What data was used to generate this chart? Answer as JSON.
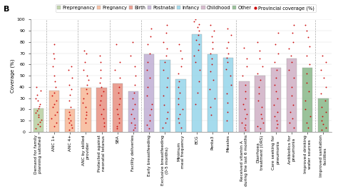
{
  "title": "B",
  "ylabel": "Coverage (%)",
  "ylim": [
    0,
    100
  ],
  "yticks": [
    0,
    10,
    20,
    30,
    40,
    50,
    60,
    70,
    80,
    90,
    100
  ],
  "bars": [
    {
      "label": "Demand for family\nplanning satisfied",
      "value": 21,
      "color": "#b8cfa0",
      "category": "Prepregnancy"
    },
    {
      "label": "ANC 1+",
      "value": 37,
      "color": "#f7b897",
      "category": "Pregnancy"
    },
    {
      "label": "ANC 4+",
      "value": 20,
      "color": "#f7b897",
      "category": "Pregnancy"
    },
    {
      "label": "ANC by skilled\nprovider",
      "value": 39,
      "color": "#f7b897",
      "category": "Pregnancy"
    },
    {
      "label": "Protected against\nneonatal tetanus",
      "value": 39,
      "color": "#e89080",
      "category": "Birth"
    },
    {
      "label": "SBA",
      "value": 43,
      "color": "#e89080",
      "category": "Birth"
    },
    {
      "label": "Facility deliveries",
      "value": 36,
      "color": "#c0aed4",
      "category": "Postnatal"
    },
    {
      "label": "Early breastfeeding",
      "value": 69,
      "color": "#c0aed4",
      "category": "Postnatal"
    },
    {
      "label": "Exclusive breastfeeding\n(0-5 months)",
      "value": 64,
      "color": "#96d5ea",
      "category": "Infancy"
    },
    {
      "label": "Minimum\nmeal frequency",
      "value": 47,
      "color": "#96d5ea",
      "category": "Infancy"
    },
    {
      "label": "BCG",
      "value": 87,
      "color": "#96d5ea",
      "category": "Infancy"
    },
    {
      "label": "Penta3",
      "value": 69,
      "color": "#96d5ea",
      "category": "Infancy"
    },
    {
      "label": "Measles",
      "value": 66,
      "color": "#96d5ea",
      "category": "Infancy"
    },
    {
      "label": "Received vitamin A\nduring the last 6 months",
      "value": 45,
      "color": "#cfb0c5",
      "category": "Childhood"
    },
    {
      "label": "Diarrhoea\ntreatment (ORS)",
      "value": 50,
      "color": "#cfb0c5",
      "category": "Childhood"
    },
    {
      "label": "Care seeking for\npneumonia",
      "value": 57,
      "color": "#cfb0c5",
      "category": "Childhood"
    },
    {
      "label": "Antibiotics for\npneumonia",
      "value": 65,
      "color": "#cfb0c5",
      "category": "Childhood"
    },
    {
      "label": "Improved drinking\nwater sources",
      "value": 57,
      "color": "#88b888",
      "category": "Other"
    },
    {
      "label": "Improved sanitation\nfacilities",
      "value": 30,
      "color": "#88b888",
      "category": "Other"
    }
  ],
  "scatter_data": {
    "0": [
      3,
      5,
      7,
      9,
      11,
      13,
      15,
      17,
      19,
      21,
      23,
      25,
      28,
      30,
      33,
      37,
      40
    ],
    "1": [
      5,
      8,
      12,
      15,
      18,
      22,
      25,
      28,
      32,
      35,
      40,
      45,
      50,
      58,
      65,
      70,
      78
    ],
    "2": [
      2,
      4,
      6,
      8,
      10,
      12,
      15,
      18,
      22,
      28,
      33,
      38,
      42,
      48,
      55,
      58
    ],
    "3": [
      8,
      12,
      15,
      18,
      22,
      26,
      30,
      34,
      38,
      42,
      46,
      50,
      55,
      62,
      70,
      72
    ],
    "4": [
      5,
      8,
      12,
      16,
      20,
      24,
      28,
      32,
      36,
      40,
      44,
      48,
      55,
      62,
      68
    ],
    "5": [
      3,
      5,
      8,
      12,
      16,
      20,
      25,
      30,
      35,
      40,
      48,
      55,
      62,
      78
    ],
    "6": [
      2,
      4,
      6,
      8,
      12,
      16,
      20,
      25,
      30,
      35,
      42,
      50,
      58,
      68,
      80
    ],
    "7": [
      3,
      6,
      10,
      15,
      20,
      25,
      32,
      40,
      48,
      55,
      62,
      70,
      78,
      85,
      92
    ],
    "8": [
      4,
      8,
      12,
      18,
      24,
      32,
      40,
      48,
      55,
      62,
      68,
      74,
      80,
      88,
      95
    ],
    "9": [
      4,
      8,
      12,
      16,
      20,
      25,
      30,
      35,
      40,
      45,
      52,
      58,
      65,
      72,
      78
    ],
    "10": [
      25,
      35,
      45,
      55,
      62,
      68,
      73,
      78,
      82,
      86,
      90,
      93,
      96,
      98,
      100
    ],
    "11": [
      15,
      22,
      30,
      38,
      46,
      54,
      60,
      65,
      70,
      74,
      80,
      85,
      90,
      95
    ],
    "12": [
      10,
      18,
      26,
      34,
      42,
      50,
      56,
      62,
      66,
      70,
      75,
      80,
      86,
      92
    ],
    "13": [
      2,
      4,
      6,
      8,
      12,
      16,
      20,
      25,
      30,
      36,
      42,
      50,
      58,
      65,
      75
    ],
    "14": [
      3,
      5,
      8,
      12,
      16,
      22,
      28,
      34,
      40,
      46,
      52,
      58,
      65,
      72,
      80
    ],
    "15": [
      4,
      7,
      10,
      14,
      18,
      24,
      30,
      36,
      42,
      48,
      55,
      62,
      70,
      78,
      88
    ],
    "16": [
      4,
      8,
      12,
      18,
      24,
      32,
      40,
      48,
      55,
      62,
      68,
      74,
      80,
      88,
      95
    ],
    "17": [
      4,
      8,
      14,
      20,
      28,
      36,
      44,
      52,
      60,
      68,
      76,
      84,
      90,
      95
    ],
    "18": [
      2,
      4,
      7,
      10,
      14,
      18,
      22,
      28,
      34,
      40,
      48,
      55,
      62,
      68
    ]
  },
  "legend_categories": [
    {
      "label": "Prepregnancy",
      "color": "#b8cfa0"
    },
    {
      "label": "Pregnancy",
      "color": "#f7b897"
    },
    {
      "label": "Birth",
      "color": "#e89080"
    },
    {
      "label": "Postnatal",
      "color": "#c0aed4"
    },
    {
      "label": "Infancy",
      "color": "#96d5ea"
    },
    {
      "label": "Childhood",
      "color": "#cfb0c5"
    },
    {
      "label": "Other",
      "color": "#88b888"
    }
  ],
  "background_color": "#ffffff",
  "bar_alpha": 0.85,
  "scatter_color": "#cc0000",
  "scatter_marker": ".",
  "scatter_size": 3,
  "divider_positions": [
    0.5,
    2.5,
    4.5,
    6.5,
    12.5,
    17.5
  ],
  "title_fontsize": 8,
  "tick_fontsize": 4.5,
  "legend_fontsize": 4.8,
  "bar_edge_color": "#999999",
  "bar_linewidth": 0.3
}
